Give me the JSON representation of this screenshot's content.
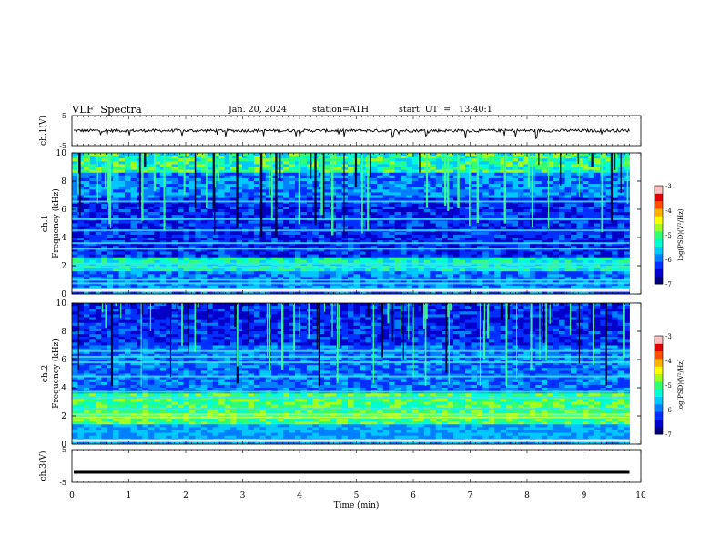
{
  "header": {
    "title": "VLF  Spectra",
    "date": "Jan. 20, 2024",
    "station": "station=ATH",
    "start": "start  UT  =   13:40:1"
  },
  "chart_data": [
    {
      "type": "line",
      "id": "ch1",
      "ylabel": "ch.1(V)",
      "ylim": [
        -5,
        5
      ],
      "yticks": [
        "5",
        "-5"
      ],
      "xlim": [
        0,
        10
      ],
      "baseline": 0,
      "description_of_values": "noisy waveform near 0 V with short spikes down to about -2 V"
    },
    {
      "type": "heatmap",
      "id": "ch1spec",
      "ylabel": "ch.1\nFrequency (kHz)",
      "ylim": [
        0,
        10
      ],
      "yticks": [
        "0",
        "2",
        "4",
        "6",
        "8",
        "10"
      ],
      "xlim": [
        0,
        9.8
      ],
      "colorbar": {
        "label": "log(PSD)(V²/Hz)",
        "range": [
          -7,
          -3
        ],
        "ticks": [
          "-3",
          "-4",
          "-5",
          "-6",
          "-7"
        ]
      },
      "bands_khz": [
        0.4,
        0.75,
        1.0,
        1.9,
        2.15,
        3.2,
        3.6,
        4.5,
        5.3,
        6.55
      ]
    },
    {
      "type": "heatmap",
      "id": "ch2spec",
      "ylabel": "ch.2\nFrequency (kHz)",
      "ylim": [
        0,
        10
      ],
      "yticks": [
        "0",
        "2",
        "4",
        "6",
        "8",
        "10"
      ],
      "xlim": [
        0,
        9.8
      ],
      "colorbar": {
        "label": "log(PSD)(V²/Hz)",
        "range": [
          -7,
          -3
        ],
        "ticks": [
          "-3",
          "-4",
          "-5",
          "-6",
          "-7"
        ]
      },
      "bands_khz": [
        1.9,
        2.1,
        2.5,
        3.3,
        3.7,
        4.8,
        5.8,
        6.2,
        6.6
      ]
    },
    {
      "type": "line",
      "id": "ch3",
      "ylabel": "ch.3(V)",
      "ylim": [
        -5,
        5
      ],
      "yticks": [
        "5",
        "-5"
      ],
      "xlim": [
        0,
        10
      ],
      "baseline": -1.8
    }
  ],
  "xaxis": {
    "label": "Time  (min)",
    "ticks": [
      "0",
      "1",
      "2",
      "3",
      "4",
      "5",
      "6",
      "7",
      "8",
      "9",
      "10"
    ]
  }
}
